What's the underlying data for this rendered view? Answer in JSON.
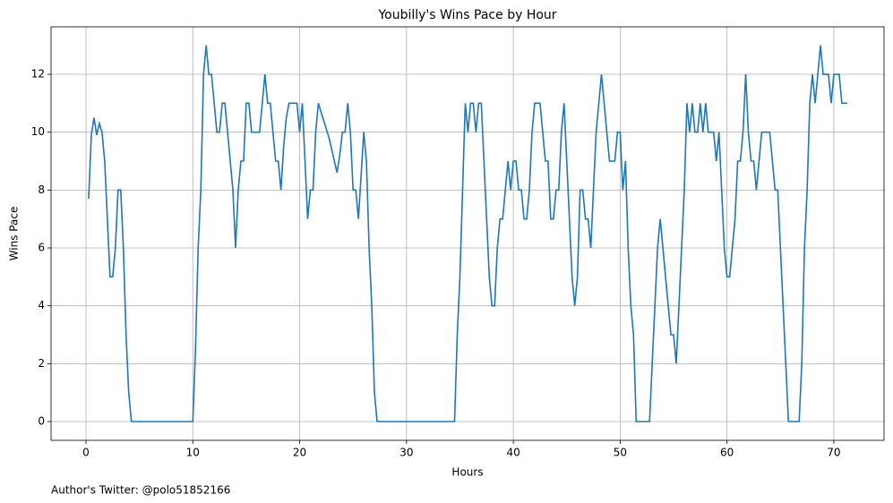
{
  "chart_data": {
    "type": "line",
    "title": "Youbilly's Wins Pace by Hour",
    "x_label": "Hours",
    "y_label": "Wins Pace",
    "annotation": "Author's Twitter: @polo51852166",
    "xlim": [
      -3.27,
      74.7
    ],
    "ylim": [
      -0.65,
      13.64
    ],
    "xticks": [
      0,
      10,
      20,
      30,
      40,
      50,
      60,
      70
    ],
    "yticks": [
      0,
      2,
      4,
      6,
      8,
      10,
      12
    ],
    "grid": true,
    "series": [
      {
        "name": "Wins Pace",
        "color": "#1f77b4",
        "x": [
          0.25,
          0.5,
          0.75,
          1.0,
          1.25,
          1.5,
          1.75,
          2.0,
          2.25,
          2.5,
          2.75,
          3.0,
          3.25,
          3.5,
          3.75,
          4.0,
          4.25,
          10.0,
          10.25,
          10.5,
          10.75,
          11.0,
          11.25,
          11.5,
          11.75,
          12.0,
          12.25,
          12.5,
          12.75,
          13.0,
          13.25,
          13.5,
          13.75,
          14.0,
          14.25,
          14.5,
          14.75,
          15.0,
          15.25,
          15.5,
          15.75,
          16.0,
          16.25,
          16.5,
          16.75,
          17.0,
          17.25,
          17.5,
          17.75,
          18.0,
          18.25,
          18.5,
          18.75,
          19.0,
          19.25,
          19.5,
          19.75,
          20.0,
          20.25,
          20.5,
          20.75,
          21.0,
          21.25,
          21.5,
          21.75,
          22.0,
          22.25,
          22.5,
          22.75,
          23.0,
          23.25,
          23.5,
          23.75,
          24.0,
          24.25,
          24.5,
          24.75,
          25.0,
          25.25,
          25.5,
          25.75,
          26.0,
          26.25,
          26.5,
          26.75,
          27.0,
          27.25,
          34.5,
          34.75,
          35.0,
          35.25,
          35.5,
          35.75,
          36.0,
          36.25,
          36.5,
          36.75,
          37.0,
          37.25,
          37.5,
          37.75,
          38.0,
          38.25,
          38.5,
          38.75,
          39.0,
          39.25,
          39.5,
          39.75,
          40.0,
          40.25,
          40.5,
          40.75,
          41.0,
          41.25,
          41.5,
          41.75,
          42.0,
          42.25,
          42.5,
          42.75,
          43.0,
          43.25,
          43.5,
          43.75,
          44.0,
          44.25,
          44.5,
          44.75,
          45.0,
          45.25,
          45.5,
          45.75,
          46.0,
          46.25,
          46.5,
          46.75,
          47.0,
          47.25,
          47.5,
          47.75,
          48.0,
          48.25,
          48.5,
          48.75,
          49.0,
          49.25,
          49.5,
          49.75,
          50.0,
          50.25,
          50.5,
          50.75,
          51.0,
          51.25,
          51.5,
          52.75,
          53.0,
          53.25,
          53.5,
          53.75,
          54.0,
          54.25,
          54.5,
          54.75,
          55.0,
          55.25,
          55.5,
          55.75,
          56.0,
          56.25,
          56.5,
          56.75,
          57.0,
          57.25,
          57.5,
          57.75,
          58.0,
          58.25,
          58.5,
          58.75,
          59.0,
          59.25,
          59.5,
          59.75,
          60.0,
          60.25,
          60.5,
          60.75,
          61.0,
          61.25,
          61.5,
          61.75,
          62.0,
          62.25,
          62.5,
          62.75,
          63.0,
          63.25,
          63.5,
          63.75,
          64.0,
          64.25,
          64.5,
          64.75,
          65.0,
          65.25,
          65.5,
          65.75,
          66.75,
          67.0,
          67.25,
          67.5,
          67.75,
          68.0,
          68.25,
          68.5,
          68.75,
          69.0,
          69.25,
          69.5,
          69.75,
          70.0,
          70.25,
          70.5,
          70.75,
          71.0,
          71.25
        ],
        "values": [
          7.7,
          9.9,
          10.5,
          9.9,
          10.3,
          10,
          9,
          7,
          5,
          5,
          6,
          8,
          8,
          6,
          3,
          1,
          0,
          0,
          2.5,
          6,
          8,
          12,
          13,
          12,
          12,
          11,
          10,
          10,
          11,
          11,
          10,
          9,
          8,
          6,
          8,
          9,
          9,
          11,
          11,
          10,
          10,
          10,
          10,
          11,
          12,
          11,
          11,
          10,
          9,
          9,
          8,
          9.5,
          10.5,
          11,
          11,
          11,
          11,
          10,
          11,
          9,
          7,
          8,
          8,
          10,
          11,
          10.7,
          10.4,
          10.1,
          9.8,
          9.4,
          9,
          8.6,
          9.2,
          10,
          10,
          11,
          10,
          8,
          8,
          7,
          8.5,
          10,
          9,
          6,
          4,
          1,
          0,
          0,
          3,
          5,
          8,
          11,
          10,
          11,
          11,
          10,
          11,
          11,
          9,
          7,
          5,
          4,
          4,
          6,
          7,
          7,
          8,
          9,
          8,
          9,
          9,
          8,
          8,
          7,
          7,
          8,
          10,
          11,
          11,
          11,
          10,
          9,
          9,
          7,
          7,
          8,
          8,
          10,
          11,
          9,
          7,
          5,
          4,
          5,
          8,
          8,
          7,
          7,
          6,
          8,
          10,
          11,
          12,
          11,
          10,
          9,
          9,
          9,
          10,
          10,
          8,
          9,
          6,
          4,
          3,
          0,
          0,
          2,
          4,
          6,
          7,
          6,
          5,
          4,
          3,
          3,
          2,
          4,
          6,
          8,
          11,
          10,
          11,
          10,
          10,
          11,
          10,
          11,
          10,
          10,
          10,
          9,
          10,
          8,
          6,
          5,
          5,
          6,
          7,
          9,
          9,
          10,
          12,
          10,
          9,
          9,
          8,
          9,
          10,
          10,
          10,
          10,
          9,
          8,
          8,
          6,
          4,
          2,
          0,
          0,
          2,
          6,
          8,
          11,
          12,
          11,
          12,
          13,
          12,
          12,
          12,
          11,
          12,
          12,
          12,
          11,
          11,
          11
        ]
      }
    ]
  }
}
